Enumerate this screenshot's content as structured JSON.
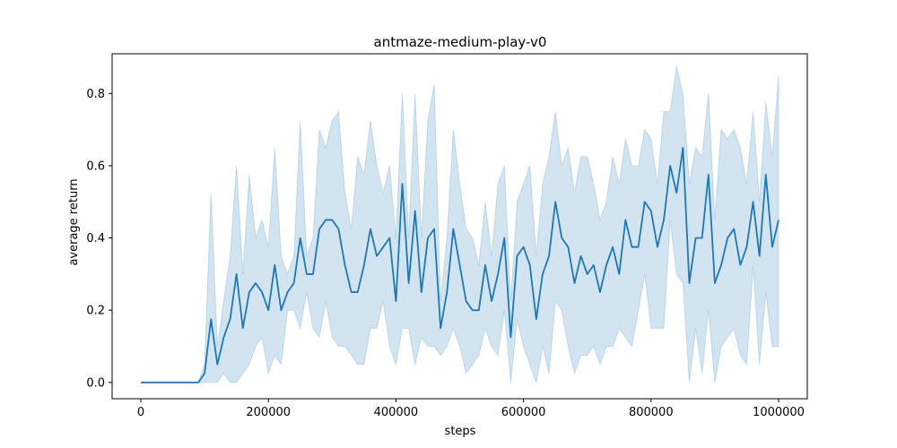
{
  "chart_data": {
    "type": "line",
    "title": "antmaze-medium-play-v0",
    "xlabel": "steps",
    "ylabel": "average return",
    "xlim": [
      -45000,
      1045000
    ],
    "ylim": [
      -0.045,
      0.91
    ],
    "xticks": [
      0,
      200000,
      400000,
      600000,
      800000,
      1000000
    ],
    "xtick_labels": [
      "0",
      "200000",
      "400000",
      "600000",
      "800000",
      "1000000"
    ],
    "yticks": [
      0.0,
      0.2,
      0.4,
      0.6,
      0.8
    ],
    "ytick_labels": [
      "0.0",
      "0.2",
      "0.4",
      "0.6",
      "0.8"
    ],
    "grid": false,
    "colors": {
      "line": "#1f77b4",
      "band": "#1f77b4"
    },
    "series": [
      {
        "x": [
          0,
          10000,
          20000,
          30000,
          40000,
          50000,
          60000,
          70000,
          80000,
          90000,
          100000,
          110000,
          120000,
          130000,
          140000,
          150000,
          160000,
          170000,
          180000,
          190000,
          200000,
          210000,
          220000,
          230000,
          240000,
          250000,
          260000,
          270000,
          280000,
          290000,
          300000,
          310000,
          320000,
          330000,
          340000,
          350000,
          360000,
          370000,
          380000,
          390000,
          400000,
          410000,
          420000,
          430000,
          440000,
          450000,
          460000,
          470000,
          480000,
          490000,
          500000,
          510000,
          520000,
          530000,
          540000,
          550000,
          560000,
          570000,
          580000,
          590000,
          600000,
          610000,
          620000,
          630000,
          640000,
          650000,
          660000,
          670000,
          680000,
          690000,
          700000,
          710000,
          720000,
          730000,
          740000,
          750000,
          760000,
          770000,
          780000,
          790000,
          800000,
          810000,
          820000,
          830000,
          840000,
          850000,
          860000,
          870000,
          880000,
          890000,
          900000,
          910000,
          920000,
          930000,
          940000,
          950000,
          960000,
          970000,
          980000,
          990000,
          1000000
        ],
        "y": [
          0,
          0,
          0,
          0,
          0,
          0,
          0,
          0,
          0,
          0,
          0.025,
          0.175,
          0.05,
          0.125,
          0.175,
          0.3,
          0.15,
          0.25,
          0.275,
          0.25,
          0.2,
          0.325,
          0.2,
          0.25,
          0.275,
          0.4,
          0.3,
          0.3,
          0.425,
          0.45,
          0.45,
          0.425,
          0.325,
          0.25,
          0.25,
          0.325,
          0.425,
          0.35,
          0.375,
          0.4,
          0.225,
          0.55,
          0.275,
          0.475,
          0.25,
          0.4,
          0.425,
          0.15,
          0.25,
          0.425,
          0.325,
          0.225,
          0.2,
          0.2,
          0.325,
          0.225,
          0.3,
          0.4,
          0.125,
          0.35,
          0.375,
          0.325,
          0.175,
          0.3,
          0.35,
          0.5,
          0.4,
          0.375,
          0.275,
          0.35,
          0.3,
          0.325,
          0.25,
          0.325,
          0.375,
          0.3,
          0.45,
          0.375,
          0.375,
          0.5,
          0.475,
          0.375,
          0.45,
          0.6,
          0.525,
          0.65,
          0.275,
          0.4,
          0.4,
          0.575,
          0.275,
          0.325,
          0.4,
          0.425,
          0.325,
          0.375,
          0.5,
          0.35,
          0.575,
          0.375,
          0.45
        ],
        "lower": [
          0,
          0,
          0,
          0,
          0,
          0,
          0,
          0,
          0,
          0,
          0,
          0,
          0,
          0.025,
          0,
          0,
          0.025,
          0.05,
          0.1,
          0.125,
          0.025,
          0.075,
          0.05,
          0.2,
          0.2,
          0.15,
          0.25,
          0.15,
          0.125,
          0.225,
          0.125,
          0.1,
          0.1,
          0.075,
          0.05,
          0.05,
          0.15,
          0.15,
          0.225,
          0.1,
          0.05,
          0.15,
          0.15,
          0.05,
          0.125,
          0.1,
          0.1,
          0.075,
          0.1,
          0.15,
          0.1,
          0.025,
          0.05,
          0.075,
          0.15,
          0.1,
          0.075,
          0.2,
          0,
          0.175,
          0.1,
          0.05,
          0,
          0.1,
          0.025,
          0.225,
          0.2,
          0.1,
          0.025,
          0.075,
          0.075,
          0.1,
          0.05,
          0.1,
          0.1,
          0.15,
          0.125,
          0.1,
          0.2,
          0.3,
          0.15,
          0.15,
          0.15,
          0.45,
          0.3,
          0.275,
          0,
          0.15,
          0.025,
          0.2,
          0,
          0.1,
          0.125,
          0.15,
          0.075,
          0.05,
          0.325,
          0.05,
          0.25,
          0.1,
          0.1
        ],
        "upper": [
          0,
          0,
          0,
          0,
          0,
          0,
          0,
          0,
          0,
          0,
          0.05,
          0.525,
          0.1,
          0.225,
          0.35,
          0.6,
          0.3,
          0.575,
          0.4,
          0.45,
          0.375,
          0.65,
          0.35,
          0.3,
          0.35,
          0.725,
          0.35,
          0.4,
          0.7,
          0.65,
          0.725,
          0.75,
          0.525,
          0.425,
          0.625,
          0.575,
          0.725,
          0.6,
          0.525,
          0.6,
          0.4,
          0.8,
          0.4,
          0.8,
          0.4,
          0.725,
          0.825,
          0.225,
          0.4,
          0.7,
          0.55,
          0.425,
          0.4,
          0.325,
          0.5,
          0.35,
          0.55,
          0.6,
          0.225,
          0.5,
          0.55,
          0.6,
          0.35,
          0.55,
          0.625,
          0.75,
          0.6,
          0.65,
          0.525,
          0.625,
          0.625,
          0.55,
          0.45,
          0.5,
          0.625,
          0.55,
          0.675,
          0.6,
          0.6,
          0.7,
          0.675,
          0.55,
          0.75,
          0.75,
          0.875,
          0.8,
          0.55,
          0.65,
          0.625,
          0.8,
          0.45,
          0.7,
          0.675,
          0.7,
          0.65,
          0.55,
          0.75,
          0.5,
          0.775,
          0.625,
          0.85
        ]
      }
    ]
  }
}
